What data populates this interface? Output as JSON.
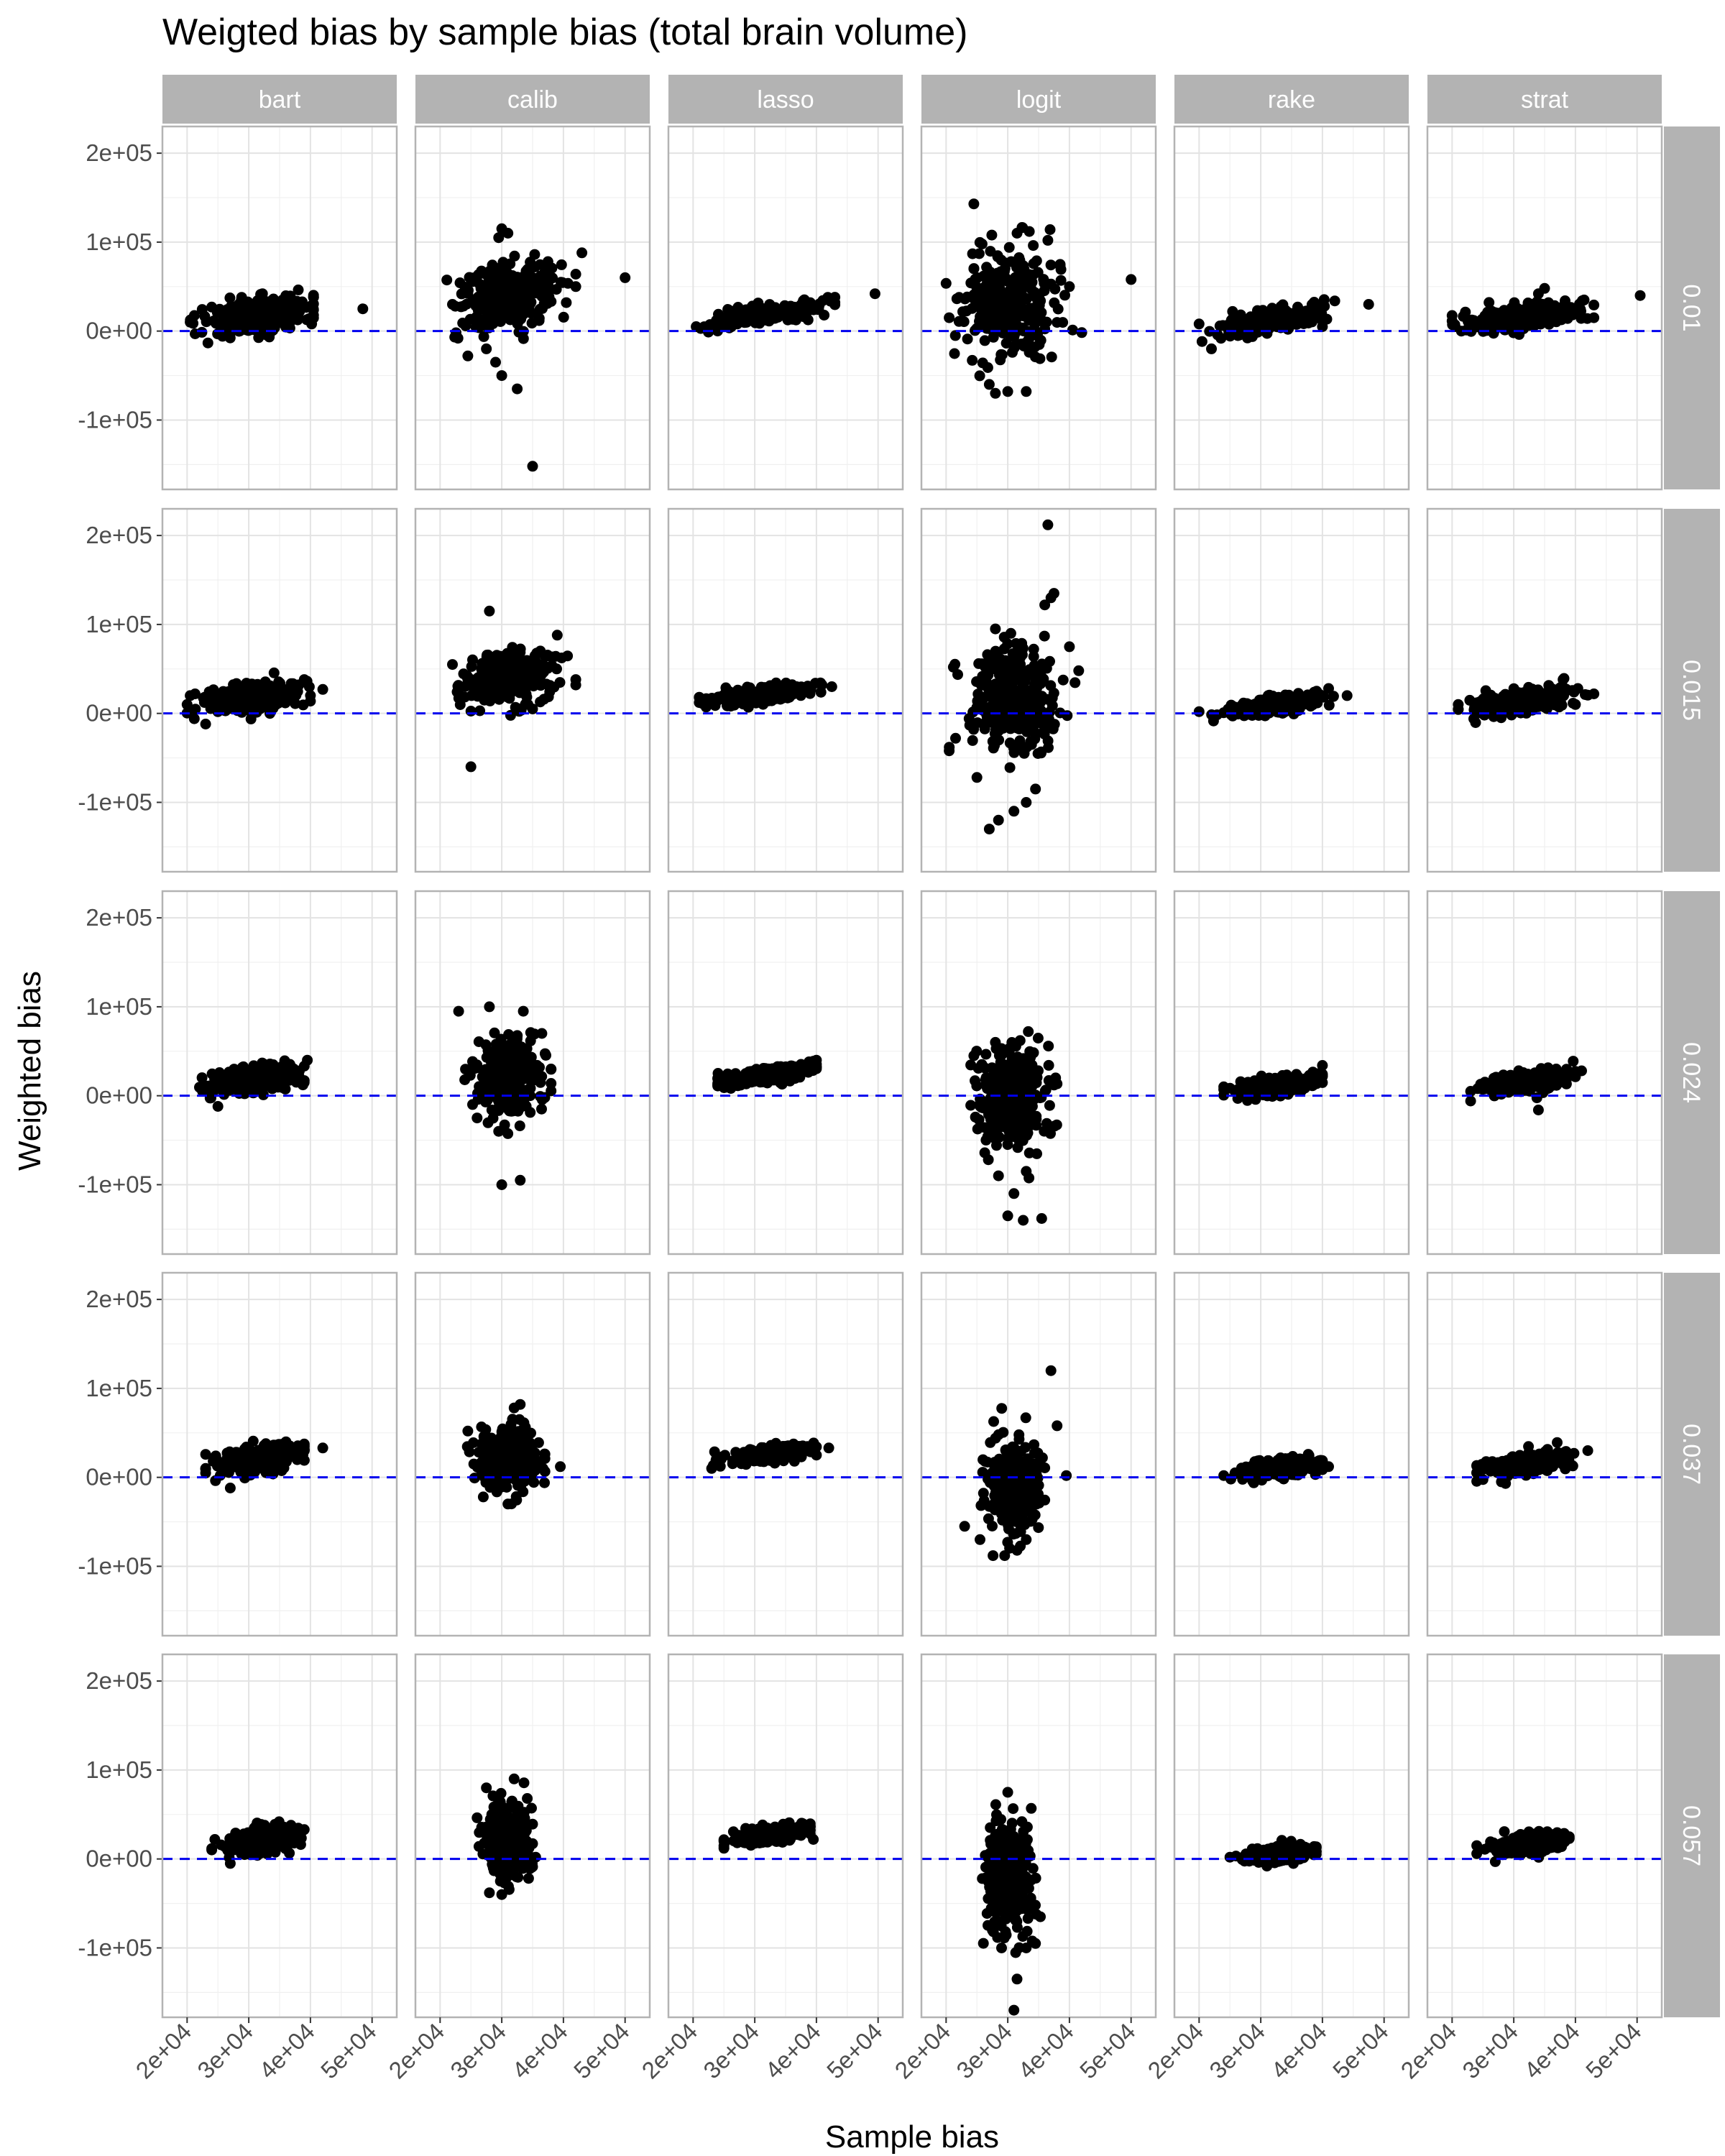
{
  "chart_data": {
    "type": "scatter",
    "title": "Weigted bias by sample bias (total brain volume)",
    "xlabel": "Sample bias",
    "ylabel": "Weighted bias",
    "xlim": [
      16000,
      54000
    ],
    "ylim": [
      -178000,
      230000
    ],
    "x_ticks": [
      20000,
      30000,
      40000,
      50000
    ],
    "x_tick_labels": [
      "2e+04",
      "3e+04",
      "4e+04",
      "5e+04"
    ],
    "y_ticks": [
      -100000,
      0,
      100000,
      200000
    ],
    "y_tick_labels": [
      "-1e+05",
      "0e+00",
      "1e+05",
      "2e+05"
    ],
    "reference_line": {
      "y": 0,
      "style": "dashed",
      "color": "#0000ee"
    },
    "grid": true,
    "point_color": "#000000",
    "columns": [
      "bart",
      "calib",
      "lasso",
      "logit",
      "rake",
      "strat"
    ],
    "rows": [
      "0.01",
      "0.015",
      "0.024",
      "0.037",
      "0.057"
    ],
    "panel_spec": {
      "0.01": {
        "bart": {
          "x_center": 31500,
          "x_sd": 4200,
          "x_min": 20000,
          "x_max": 40500,
          "intercept": 16000,
          "slope": 1.1,
          "noise": 9500,
          "outliers": [
            [
              48500,
              25000
            ],
            [
              40200,
              8000
            ],
            [
              40500,
              38000
            ],
            [
              24000,
              27000
            ],
            [
              20500,
              10000
            ]
          ]
        },
        "calib": {
          "x_center": 31000,
          "x_sd": 3800,
          "x_min": 21000,
          "x_max": 42000,
          "intercept": 40000,
          "slope": 1.3,
          "noise": 18000,
          "outliers": [
            [
              30000,
              115000
            ],
            [
              31000,
              110000
            ],
            [
              29500,
              105000
            ],
            [
              43000,
              88000
            ],
            [
              50000,
              60000
            ],
            [
              24500,
              -28000
            ],
            [
              29000,
              -35000
            ],
            [
              30000,
              -50000
            ],
            [
              32500,
              -65000
            ],
            [
              27500,
              -20000
            ],
            [
              35000,
              -152000
            ],
            [
              22000,
              30000
            ],
            [
              42000,
              50000
            ]
          ]
        },
        "lasso": {
          "x_center": 31500,
          "x_sd": 4200,
          "x_min": 20000,
          "x_max": 43000,
          "intercept": 18500,
          "slope": 1.0,
          "noise": 4500,
          "outliers": [
            [
              49500,
              42000
            ],
            [
              20500,
              5000
            ],
            [
              43000,
              38000
            ]
          ]
        },
        "logit": {
          "x_center": 30500,
          "x_sd": 3800,
          "x_min": 20000,
          "x_max": 42000,
          "intercept": 30000,
          "slope": 0.8,
          "noise": 30000,
          "outliers": [
            [
              24500,
              143000
            ],
            [
              33500,
              112000
            ],
            [
              31500,
              110000
            ],
            [
              36500,
              102000
            ],
            [
              50000,
              58000
            ],
            [
              20500,
              15000
            ],
            [
              21500,
              -5000
            ],
            [
              27000,
              -60000
            ],
            [
              28000,
              -70000
            ],
            [
              30000,
              -68000
            ],
            [
              33000,
              -68000
            ],
            [
              24500,
              70000
            ],
            [
              38500,
              75000
            ],
            [
              40000,
              50000
            ]
          ]
        },
        "rake": {
          "x_center": 32000,
          "x_sd": 4200,
          "x_min": 20000,
          "x_max": 42000,
          "intercept": 11000,
          "slope": 1.3,
          "noise": 6000,
          "outliers": [
            [
              47500,
              30000
            ],
            [
              40000,
              5000
            ],
            [
              20000,
              8000
            ],
            [
              22000,
              -20000
            ]
          ]
        },
        "strat": {
          "x_center": 31000,
          "x_sd": 4200,
          "x_min": 20000,
          "x_max": 43000,
          "intercept": 15000,
          "slope": 1.1,
          "noise": 6500,
          "outliers": [
            [
              50500,
              40000
            ],
            [
              43000,
              15000
            ],
            [
              20500,
              5000
            ],
            [
              21500,
              0
            ],
            [
              35000,
              48000
            ],
            [
              34000,
              42000
            ]
          ]
        }
      },
      "0.015": {
        "bart": {
          "x_center": 31500,
          "x_sd": 3800,
          "x_min": 20000,
          "x_max": 40000,
          "intercept": 18000,
          "slope": 0.9,
          "noise": 7500,
          "outliers": [
            [
              42000,
              27000
            ],
            [
              20500,
              20000
            ],
            [
              23000,
              -12000
            ],
            [
              39000,
              38000
            ]
          ]
        },
        "calib": {
          "x_center": 31000,
          "x_sd": 3500,
          "x_min": 21000,
          "x_max": 42000,
          "intercept": 40000,
          "slope": 0.9,
          "noise": 14000,
          "outliers": [
            [
              28000,
              115000
            ],
            [
              25000,
              -60000
            ],
            [
              39000,
              88000
            ],
            [
              42000,
              38000
            ],
            [
              22000,
              55000
            ],
            [
              35000,
              5000
            ]
          ]
        },
        "lasso": {
          "x_center": 31500,
          "x_sd": 4000,
          "x_min": 21000,
          "x_max": 42000,
          "intercept": 21500,
          "slope": 0.9,
          "noise": 4000,
          "outliers": [
            [
              42500,
              30000
            ],
            [
              21000,
              18000
            ]
          ]
        },
        "logit": {
          "x_center": 31000,
          "x_sd": 3500,
          "x_min": 20000,
          "x_max": 41000,
          "intercept": 15000,
          "slope": 0.5,
          "noise": 28000,
          "outliers": [
            [
              36500,
              212000
            ],
            [
              37000,
              130000
            ],
            [
              37500,
              135000
            ],
            [
              36000,
              122000
            ],
            [
              28000,
              95000
            ],
            [
              30500,
              90000
            ],
            [
              40000,
              75000
            ],
            [
              41500,
              48000
            ],
            [
              20500,
              -42000
            ],
            [
              27000,
              -130000
            ],
            [
              28500,
              -120000
            ],
            [
              31000,
              -110000
            ],
            [
              33000,
              -100000
            ],
            [
              25000,
              -72000
            ],
            [
              34500,
              -85000
            ]
          ]
        },
        "rake": {
          "x_center": 32500,
          "x_sd": 4000,
          "x_min": 20000,
          "x_max": 42000,
          "intercept": 9000,
          "slope": 1.0,
          "noise": 5000,
          "outliers": [
            [
              44000,
              20000
            ],
            [
              20000,
              2000
            ],
            [
              41000,
              28000
            ]
          ]
        },
        "strat": {
          "x_center": 31500,
          "x_sd": 4000,
          "x_min": 21000,
          "x_max": 42000,
          "intercept": 14000,
          "slope": 1.0,
          "noise": 6000,
          "outliers": [
            [
              43000,
              22000
            ],
            [
              21000,
              10000
            ],
            [
              38000,
              38000
            ],
            [
              40000,
              10000
            ]
          ]
        }
      },
      "0.024": {
        "bart": {
          "x_center": 31500,
          "x_sd": 3500,
          "x_min": 22000,
          "x_max": 39000,
          "intercept": 19000,
          "slope": 1.0,
          "noise": 7000,
          "outliers": [
            [
              39500,
              40000
            ],
            [
              22500,
              5000
            ],
            [
              25000,
              -12000
            ]
          ]
        },
        "calib": {
          "x_center": 31000,
          "x_sd": 2600,
          "x_min": 24000,
          "x_max": 38000,
          "intercept": 22000,
          "slope": 0.3,
          "noise": 22000,
          "outliers": [
            [
              23000,
              95000
            ],
            [
              28000,
              100000
            ],
            [
              33500,
              95000
            ],
            [
              30000,
              -100000
            ],
            [
              33000,
              -95000
            ],
            [
              26000,
              -25000
            ],
            [
              36500,
              70000
            ],
            [
              38000,
              30000
            ],
            [
              29500,
              -40000
            ]
          ]
        },
        "lasso": {
          "x_center": 32000,
          "x_sd": 3500,
          "x_min": 24000,
          "x_max": 40000,
          "intercept": 23000,
          "slope": 1.1,
          "noise": 4000,
          "outliers": [
            [
              40000,
              40000
            ],
            [
              24000,
              12000
            ]
          ]
        },
        "logit": {
          "x_center": 30800,
          "x_sd": 2500,
          "x_min": 24000,
          "x_max": 38000,
          "intercept": 0,
          "slope": 0.2,
          "noise": 28000,
          "outliers": [
            [
              28000,
              60000
            ],
            [
              32000,
              62000
            ],
            [
              24500,
              45000
            ],
            [
              37500,
              12000
            ],
            [
              31000,
              -110000
            ],
            [
              30000,
              -135000
            ],
            [
              32500,
              -140000
            ],
            [
              35500,
              -138000
            ],
            [
              28500,
              -90000
            ],
            [
              33000,
              -85000
            ]
          ]
        },
        "rake": {
          "x_center": 32500,
          "x_sd": 3200,
          "x_min": 24000,
          "x_max": 40000,
          "intercept": 10000,
          "slope": 1.0,
          "noise": 5000,
          "outliers": [
            [
              40000,
              22000
            ],
            [
              24000,
              10000
            ]
          ]
        },
        "strat": {
          "x_center": 32000,
          "x_sd": 3300,
          "x_min": 23000,
          "x_max": 40000,
          "intercept": 16000,
          "slope": 1.0,
          "noise": 5500,
          "outliers": [
            [
              41000,
              28000
            ],
            [
              23000,
              5000
            ],
            [
              34000,
              -16000
            ]
          ]
        }
      },
      "0.037": {
        "bart": {
          "x_center": 32000,
          "x_sd": 3200,
          "x_min": 23000,
          "x_max": 39000,
          "intercept": 22000,
          "slope": 1.0,
          "noise": 7000,
          "outliers": [
            [
              42000,
              33000
            ],
            [
              23000,
              10000
            ],
            [
              27000,
              -12000
            ]
          ]
        },
        "calib": {
          "x_center": 31000,
          "x_sd": 2300,
          "x_min": 24000,
          "x_max": 37000,
          "intercept": 22000,
          "slope": 0.3,
          "noise": 18000,
          "outliers": [
            [
              33000,
              82000
            ],
            [
              32000,
              78000
            ],
            [
              24500,
              52000
            ],
            [
              39500,
              12000
            ],
            [
              27000,
              -22000
            ],
            [
              31000,
              -30000
            ]
          ]
        },
        "lasso": {
          "x_center": 32500,
          "x_sd": 3200,
          "x_min": 23000,
          "x_max": 40000,
          "intercept": 26000,
          "slope": 0.9,
          "noise": 4000,
          "outliers": [
            [
              42000,
              33000
            ],
            [
              23000,
              10000
            ]
          ]
        },
        "logit": {
          "x_center": 31000,
          "x_sd": 2200,
          "x_min": 25000,
          "x_max": 36000,
          "intercept": -5000,
          "slope": 0.3,
          "noise": 25000,
          "outliers": [
            [
              37000,
              120000
            ],
            [
              38000,
              58000
            ],
            [
              39500,
              2000
            ],
            [
              23000,
              -55000
            ],
            [
              25500,
              -70000
            ],
            [
              29500,
              -88000
            ],
            [
              31500,
              -82000
            ],
            [
              33000,
              -70000
            ]
          ]
        },
        "rake": {
          "x_center": 33000,
          "x_sd": 3200,
          "x_min": 24000,
          "x_max": 40000,
          "intercept": 10000,
          "slope": 0.9,
          "noise": 5000,
          "outliers": [
            [
              41000,
              12000
            ],
            [
              24000,
              2000
            ],
            [
              37000,
              20000
            ]
          ]
        },
        "strat": {
          "x_center": 32500,
          "x_sd": 3200,
          "x_min": 24000,
          "x_max": 40000,
          "intercept": 16000,
          "slope": 1.0,
          "noise": 5500,
          "outliers": [
            [
              42000,
              30000
            ],
            [
              24000,
              5000
            ],
            [
              28000,
              -5000
            ]
          ]
        }
      },
      "0.057": {
        "bart": {
          "x_center": 32500,
          "x_sd": 2800,
          "x_min": 24000,
          "x_max": 39000,
          "intercept": 22000,
          "slope": 0.9,
          "noise": 6500,
          "outliers": [
            [
              24500,
              22000
            ],
            [
              27000,
              -5000
            ],
            [
              39000,
              33000
            ]
          ]
        },
        "calib": {
          "x_center": 31000,
          "x_sd": 1800,
          "x_min": 26000,
          "x_max": 35000,
          "intercept": 20000,
          "slope": 0.2,
          "noise": 20000,
          "outliers": [
            [
              32000,
              90000
            ],
            [
              27500,
              80000
            ],
            [
              28000,
              -38000
            ],
            [
              30000,
              -40000
            ],
            [
              35500,
              2000
            ]
          ]
        },
        "lasso": {
          "x_center": 32500,
          "x_sd": 2800,
          "x_min": 25000,
          "x_max": 39000,
          "intercept": 27000,
          "slope": 0.8,
          "noise": 4500,
          "outliers": [
            [
              39500,
              22000
            ],
            [
              25000,
              12000
            ]
          ]
        },
        "logit": {
          "x_center": 30500,
          "x_sd": 2000,
          "x_min": 25000,
          "x_max": 36000,
          "intercept": -20000,
          "slope": 0.3,
          "noise": 30000,
          "outliers": [
            [
              30000,
              75000
            ],
            [
              31000,
              -170000
            ],
            [
              31500,
              -135000
            ],
            [
              29000,
              -100000
            ],
            [
              33000,
              -100000
            ],
            [
              27500,
              -80000
            ],
            [
              34500,
              -95000
            ]
          ]
        },
        "rake": {
          "x_center": 33000,
          "x_sd": 2800,
          "x_min": 25000,
          "x_max": 39000,
          "intercept": 5000,
          "slope": 0.6,
          "noise": 4000,
          "outliers": [
            [
              39000,
              8000
            ],
            [
              25000,
              2000
            ],
            [
              31000,
              -8000
            ]
          ]
        },
        "strat": {
          "x_center": 32500,
          "x_sd": 2800,
          "x_min": 24000,
          "x_max": 39000,
          "intercept": 17000,
          "slope": 0.9,
          "noise": 5000,
          "outliers": [
            [
              24000,
              15000
            ],
            [
              39000,
              25000
            ],
            [
              27000,
              -3000
            ]
          ]
        }
      }
    }
  }
}
